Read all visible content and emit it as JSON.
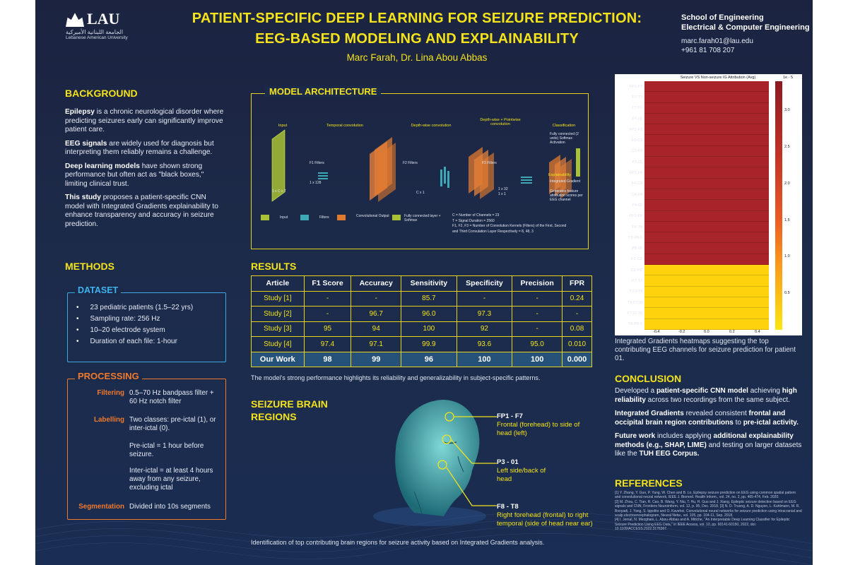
{
  "logo": {
    "name": "LAU",
    "arabic": "الجامعة اللبنانية الأميركية",
    "english": "Lebanese American University"
  },
  "title": {
    "line1": "PATIENT-SPECIFIC DEEP LEARNING FOR SEIZURE PREDICTION:",
    "line2": "EEG-BASED MODELING AND EXPLAINABILITY"
  },
  "authors": "Marc Farah, Dr. Lina Abou Abbas",
  "school": {
    "line1": "School of Engineering",
    "line2": "Electrical & Computer Engineering"
  },
  "contact": {
    "email": "marc.farah01@lau.edu",
    "phone": "+961 81 708 207"
  },
  "background": {
    "heading": "BACKGROUND",
    "p1_bold": "Epilepsy",
    "p1_text": " is a chronic neurological disorder where predicting seizures early can significantly improve patient care.",
    "p2_bold": "EEG signals",
    "p2_text": " are widely used for diagnosis but interpreting them reliably remains a challenge.",
    "p3_bold": "Deep learning models",
    "p3_text": " have shown strong performance but often act as \"black boxes,\" limiting clinical trust.",
    "p4_bold": "This study",
    "p4_text": " proposes a patient-specific CNN model with Integrated Gradients explainability to enhance transparency and accuracy in seizure prediction."
  },
  "methods": {
    "heading": "METHODS",
    "dataset_title": "DATASET",
    "dataset_items": [
      "23 pediatric patients (1.5–22 yrs)",
      "Sampling rate: 256 Hz",
      "10–20 electrode system",
      "Duration of each file: 1-hour"
    ],
    "processing_title": "PROCESSING",
    "filtering_label": "Filtering",
    "filtering_text": "0.5–70 Hz bandpass filter + 60 Hz notch filter",
    "labelling_label": "Labelling",
    "labelling_text1": "Two classes: pre-ictal (1), or inter-ictal (0).",
    "labelling_text2": "Pre-ictal = 1 hour before seizure.",
    "labelling_text3": "Inter-ictal = at least 4 hours away from any seizure, excluding ictal",
    "segmentation_label": "Segmentation",
    "segmentation_text": "Divided into 10s segments"
  },
  "architecture": {
    "heading": "MODEL ARCHITECTURE",
    "stages": [
      "Input",
      "Temporal convolution",
      "Depth-wise convolution",
      "Depth-wise + Pointwise convolution",
      "Classification"
    ],
    "input_dim": "1 x C x T",
    "f1_label": "F1 Filters",
    "f1_dim": "1 x 128",
    "f2_label": "F2 Filters",
    "f2_dim": "C x 1",
    "f3_label": "F3 Filters",
    "f3_dim1": "1 x 32",
    "f3_dim2": "1 x 1",
    "fc_text": "Fully connected (2 units) Softmax Activation",
    "explain_title": "Explainability",
    "ig_text": "Integrated Gradient",
    "gen_text": "Generates feature attribution scores per EEG channel",
    "legend": [
      "Input",
      "Filters",
      "Convolutional Output",
      "Fully connected layer + Softmax"
    ],
    "notes": [
      "C = Number of Channels = 23",
      "T = Signal Duration = 2560",
      "F1, F2, F3 = Number of Convolution Kernels (Filters) of the First, Second",
      "and Third Convulation Layer Respectively = 8, 48, 3"
    ]
  },
  "results": {
    "heading": "RESULTS",
    "columns": [
      "Article",
      "F1 Score",
      "Accuracy",
      "Sensitivity",
      "Specificity",
      "Precision",
      "FPR"
    ],
    "rows": [
      [
        "Study [1]",
        "-",
        "-",
        "85.7",
        "-",
        "-",
        "0.24"
      ],
      [
        "Study [2]",
        "-",
        "96.7",
        "96.0",
        "97.3",
        "-",
        "-"
      ],
      [
        "Study [3]",
        "95",
        "94",
        "100",
        "92",
        "-",
        "0.08"
      ],
      [
        "Study [4]",
        "97.4",
        "97.1",
        "99.9",
        "93.6",
        "95.0",
        "0.010"
      ],
      [
        "Our Work",
        "98",
        "99",
        "96",
        "100",
        "100",
        "0.000"
      ]
    ],
    "caption": "The model's strong performance highlights its reliability and generalizability in subject-specific patterns."
  },
  "regions": {
    "heading1": "SEIZURE BRAIN",
    "heading2": "REGIONS",
    "r1_title": "FP1 - F7",
    "r1_text": "Frontal (forehead) to side of head (left)",
    "r2_title": "P3 - 01",
    "r2_text": "Left side/back of head",
    "r3_title": "F8 - T8",
    "r3_text": "Right forehead (frontal) to right temporal (side of head near ear)",
    "caption": "Identification of top contributing brain regions for seizure activity based on Integrated Gradients analysis."
  },
  "heatmap": {
    "title": "Seizure VS Non-seizure IG Attribution (Avg)",
    "scale_note": "1e - 5",
    "channels": [
      "FP1-F7",
      "F7-T7",
      "T7-P7",
      "P7-01",
      "FP1-F3",
      "F3-C3",
      "C3-P3",
      "P3-01",
      "FP2-F4",
      "F4-C4",
      "C4-P4",
      "P4-02",
      "FP2-F8",
      "F8-T8",
      "T8-P8-0",
      "P8-02",
      "FZ-CZ",
      "CZ-PZ",
      "P7-T7",
      "T7-FT9",
      "T9-FT10",
      "FT10-T8",
      "T8-P8-1"
    ],
    "values": [
      3.2,
      3.2,
      3.2,
      3.2,
      3.2,
      3.2,
      3.2,
      3.2,
      3.2,
      3.2,
      3.2,
      3.2,
      3.2,
      3.2,
      3.2,
      3.2,
      3.2,
      0.1,
      0.1,
      0.1,
      0.1,
      0.1,
      0.1
    ],
    "x_ticks": [
      "-0.4",
      "-0.2",
      "0.0",
      "0.2",
      "0.4"
    ],
    "cbar_ticks": [
      "3.0",
      "2.5",
      "2.0",
      "1.5",
      "1.0",
      "0.5"
    ],
    "colors": {
      "high": "#a9242a",
      "low": "#ffd20e"
    },
    "caption": "Integrated Gradients heatmaps suggesting the top contributing EEG channels for seizure prediction for patient 01."
  },
  "conclusion": {
    "heading": "CONCLUSION",
    "c1_a": "Developed a ",
    "c1_b": "patient-specific CNN model",
    "c1_c": " achieving ",
    "c1_d": "high reliability",
    "c1_e": " across two recordings from the same subject.",
    "c2_a": "Integrated Gradients",
    "c2_b": " revealed consistent ",
    "c2_c": "frontal and occipital brain region contributions",
    "c2_d": " to ",
    "c2_e": "pre-ictal activity.",
    "c3_a": "Future work",
    "c3_b": " includes applying ",
    "c3_c": "additional explainability methods (e.g., SHAP, LIME)",
    "c3_d": " and testing on larger datasets like the ",
    "c3_e": "TUH EEG Corpus."
  },
  "references": {
    "heading": "REFERENCES",
    "items": [
      "[1] Y. Zhang, Y. Guo, P. Yang, W. Chen and B. Lo, Epilepsy seizure prediction on EEG using common spatial pattern and convolutional neural network, IEEE J. Biomed. Health Inform., vol. 24, no. 2, pp. 465-474, Feb. 2020.",
      "[2] M. Zhou, C. Tian, R. Cao, B. Wang, Y. Niu, T. Hu, H. Guo and J. Xiang, Epileptic seizure detection based on EEG signals and CNN, Frontiers Neuroinform, vol. 12, p. 95, Dec. 2018. [3] N. D. Truong, A. D. Nguyen, L. Kuhlmann, M. R. Bonyadi, J. Yang, S. Ippolito and O. Kavehei, Convolutional neural networks for seizure prediction using intracranial and scalp electroencephalogram, Neural Netw., vol. 105, pp. 104-11, Sep. 2018.",
      "[4] I. Jemal, N. Mezghani, L. Abou-Abbas and A. Mitiche, \"An Interpretable Deep Learning Classifier for Epileptic Seizure Prediction Using EEG Data,\" in IEEE Access, vol. 10, pp. 60141-60150, 2022, doi: 10.1109/ACCESS.2022.3176367."
    ]
  }
}
